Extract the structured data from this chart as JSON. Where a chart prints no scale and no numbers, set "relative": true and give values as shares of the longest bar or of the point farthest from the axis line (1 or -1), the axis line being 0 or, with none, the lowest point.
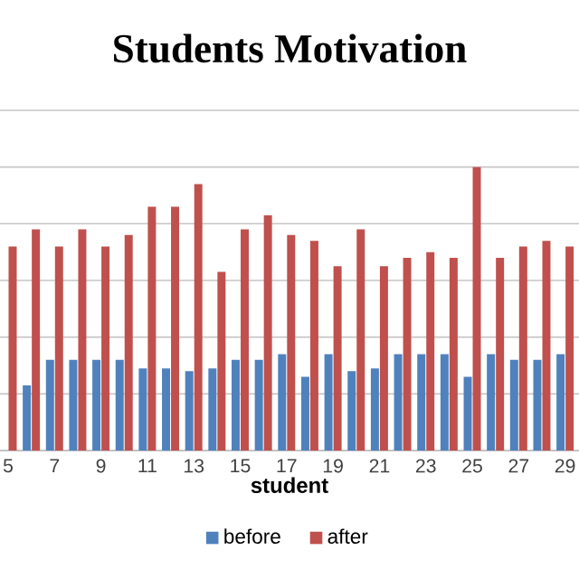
{
  "chart_data": {
    "type": "bar",
    "title": "Students Motivation",
    "xlabel": "student",
    "relative": true,
    "grid": "y",
    "legend": "bottom",
    "categories": [
      "5",
      null,
      "7",
      null,
      "9",
      null,
      "11",
      null,
      "13",
      null,
      "15",
      null,
      "17",
      null,
      "19",
      null,
      "21",
      null,
      "23",
      null,
      "25",
      null,
      "27",
      null,
      "29"
    ],
    "series": [
      {
        "name": "before",
        "color": "#4f81bd",
        "values": [
          null,
          0.23,
          0.32,
          0.32,
          0.32,
          0.32,
          0.29,
          0.29,
          0.28,
          0.29,
          0.32,
          0.32,
          0.34,
          0.26,
          0.34,
          0.28,
          0.29,
          0.34,
          0.34,
          0.34,
          0.26,
          0.34,
          0.32,
          0.32,
          0.34
        ]
      },
      {
        "name": "after",
        "color": "#c0504d",
        "values": [
          0.72,
          0.78,
          0.72,
          0.78,
          0.72,
          0.76,
          0.86,
          0.86,
          0.94,
          0.63,
          0.78,
          0.83,
          0.76,
          0.74,
          0.65,
          0.78,
          0.65,
          0.68,
          0.7,
          0.68,
          1,
          0.68,
          0.72,
          0.74,
          0.72
        ]
      }
    ]
  }
}
